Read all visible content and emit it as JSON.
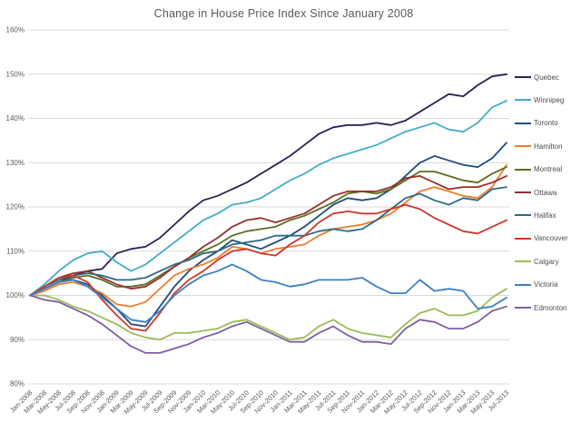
{
  "title": "Change in House Price Index Since January 2008",
  "chart_data": {
    "type": "line",
    "title": "Change in House Price Index Since January 2008",
    "legend_position": "right",
    "grid": true,
    "background": "#FFFFFF",
    "gridline_color": "#D9D9D9",
    "text_color": "#595959",
    "y_axis": {
      "min": 80,
      "max": 160,
      "step": 10,
      "tick_labels": [
        "80%",
        "90%",
        "100%",
        "110%",
        "120%",
        "130%",
        "140%",
        "150%",
        "160%"
      ]
    },
    "x_labels": [
      "Jan-2008",
      "Mar-2008",
      "May-2008",
      "Jul-2008",
      "Sep-2008",
      "Nov-2008",
      "Jan-2009",
      "Mar-2009",
      "May-2009",
      "Jul-2009",
      "Sep-2009",
      "Nov-2009",
      "Jan-2010",
      "Mar-2010",
      "May-2010",
      "Jul-2010",
      "Sep-2010",
      "Nov-2010",
      "Jan-2011",
      "Mar-2011",
      "May-2011",
      "Jul-2011",
      "Sep-2011",
      "Nov-2011",
      "Jan-2012",
      "Mar-2012",
      "May-2012",
      "Jul-2012",
      "Sep-2012",
      "Nov-2012",
      "Jan-2013",
      "Mar-2013",
      "May-2013",
      "Jul-2013"
    ],
    "series": [
      {
        "name": "Quebec",
        "color": "#2D2152",
        "values": [
          100,
          101.5,
          103,
          104.5,
          105.5,
          106,
          109.5,
          110.5,
          111,
          113,
          116,
          119,
          121.5,
          122.5,
          124,
          125.5,
          127.5,
          129.5,
          131.5,
          134,
          136.5,
          138,
          138.5,
          138.5,
          139,
          138.5,
          139.5,
          141.5,
          143.5,
          145.5,
          145,
          147.5,
          149.5,
          150
        ]
      },
      {
        "name": "Winnipeg",
        "color": "#45ACC8",
        "values": [
          100,
          102.5,
          105.5,
          108,
          109.5,
          110,
          107.5,
          105.5,
          107,
          109.5,
          112,
          114.5,
          117,
          118.5,
          120.5,
          121,
          122,
          124,
          126,
          127.5,
          129.5,
          131,
          132,
          133,
          134,
          135.5,
          137,
          138,
          139,
          137.5,
          137,
          139,
          142.5,
          144
        ]
      },
      {
        "name": "Toronto",
        "color": "#1F4E79",
        "values": [
          100,
          101.5,
          103,
          103.5,
          102.5,
          100,
          97,
          93.5,
          93,
          97.5,
          102,
          105.5,
          108,
          110,
          112.5,
          111.5,
          110.5,
          112,
          113.5,
          115.5,
          118,
          120.5,
          122,
          121.5,
          122,
          124,
          127,
          130,
          131.5,
          130.5,
          129.5,
          129,
          131,
          134.5
        ]
      },
      {
        "name": "Hamilton",
        "color": "#ED7D31",
        "values": [
          100,
          101,
          102.5,
          103,
          102,
          100.5,
          98,
          97.5,
          98.5,
          101.5,
          104.5,
          106,
          107,
          108.5,
          111,
          110.5,
          109.5,
          110.5,
          111,
          111.5,
          113.5,
          115,
          115.5,
          116,
          117,
          118.5,
          121,
          123.5,
          124.5,
          123.5,
          122.5,
          122,
          124.5,
          129.5
        ]
      },
      {
        "name": "Montreal",
        "color": "#5A6E22",
        "values": [
          100,
          101.5,
          103,
          104,
          104.5,
          103.5,
          102,
          102,
          102.5,
          104.5,
          106.5,
          108.5,
          110,
          111.5,
          113.5,
          114.5,
          115,
          115.5,
          117,
          118,
          119.5,
          121,
          123,
          123.5,
          123,
          124,
          126,
          128,
          128,
          127,
          126,
          125.5,
          127.5,
          129
        ]
      },
      {
        "name": "Ottawa",
        "color": "#96302E",
        "values": [
          100,
          102,
          104,
          105,
          105.5,
          104,
          102.5,
          101.5,
          102,
          104,
          106.5,
          108.5,
          111,
          113,
          115.5,
          117,
          117.5,
          116.5,
          117.5,
          118.5,
          120.5,
          122.5,
          123.5,
          123.5,
          123.5,
          124.5,
          126.5,
          127,
          125.5,
          124,
          124.5,
          124.5,
          125.5,
          127
        ]
      },
      {
        "name": "Halifax",
        "color": "#2A6B85",
        "values": [
          100,
          102,
          103.5,
          104.5,
          105,
          104.5,
          103.5,
          103.5,
          104,
          105.5,
          107,
          108,
          109.5,
          110,
          111.5,
          112,
          112.5,
          113.5,
          113.5,
          113.5,
          114.5,
          115,
          114.5,
          115,
          117,
          119.5,
          122,
          123,
          121.5,
          120.5,
          122,
          121.5,
          124,
          124.5
        ]
      },
      {
        "name": "Vancouver",
        "color": "#CC392B",
        "values": [
          100,
          102,
          104,
          104.5,
          103,
          99,
          95.5,
          92.5,
          92,
          96,
          100.5,
          103.5,
          105.5,
          108,
          110,
          110.5,
          109.5,
          109,
          111.5,
          113.5,
          116.5,
          118.5,
          119,
          118.5,
          118.5,
          119.5,
          120.5,
          119.5,
          117.5,
          116,
          114.5,
          114,
          115.5,
          117
        ]
      },
      {
        "name": "Calgary",
        "color": "#9BBB59",
        "values": [
          100,
          100,
          99,
          97.5,
          96.5,
          95,
          93.5,
          91.5,
          90.5,
          90,
          91.5,
          91.5,
          92,
          92.5,
          94,
          94.5,
          93,
          91.5,
          90,
          90.5,
          93,
          94.5,
          92.5,
          91.5,
          91,
          90.5,
          93.5,
          96,
          97,
          95.5,
          95.5,
          96.5,
          99.5,
          101.5
        ]
      },
      {
        "name": "Victoria",
        "color": "#3F7FC1",
        "values": [
          100,
          101.5,
          103,
          103.5,
          102,
          99.5,
          97,
          94.5,
          94,
          96.5,
          100,
          102.5,
          104.5,
          105.5,
          107,
          105.5,
          103.5,
          103,
          102,
          102.5,
          103.5,
          103.5,
          103.5,
          104,
          102,
          100.5,
          100.5,
          103.5,
          101,
          101.5,
          101,
          97,
          97.5,
          99.5
        ]
      },
      {
        "name": "Edmonton",
        "color": "#7D61A1",
        "values": [
          100,
          99,
          98.5,
          97,
          95.5,
          93.5,
          91,
          88.5,
          87,
          87,
          88,
          89,
          90.5,
          91.5,
          93,
          94,
          92.5,
          91,
          89.5,
          89.5,
          91.5,
          93,
          91,
          89.5,
          89.5,
          89,
          92.5,
          94.5,
          94,
          92.5,
          92.5,
          94,
          96.5,
          97.5
        ]
      }
    ]
  }
}
